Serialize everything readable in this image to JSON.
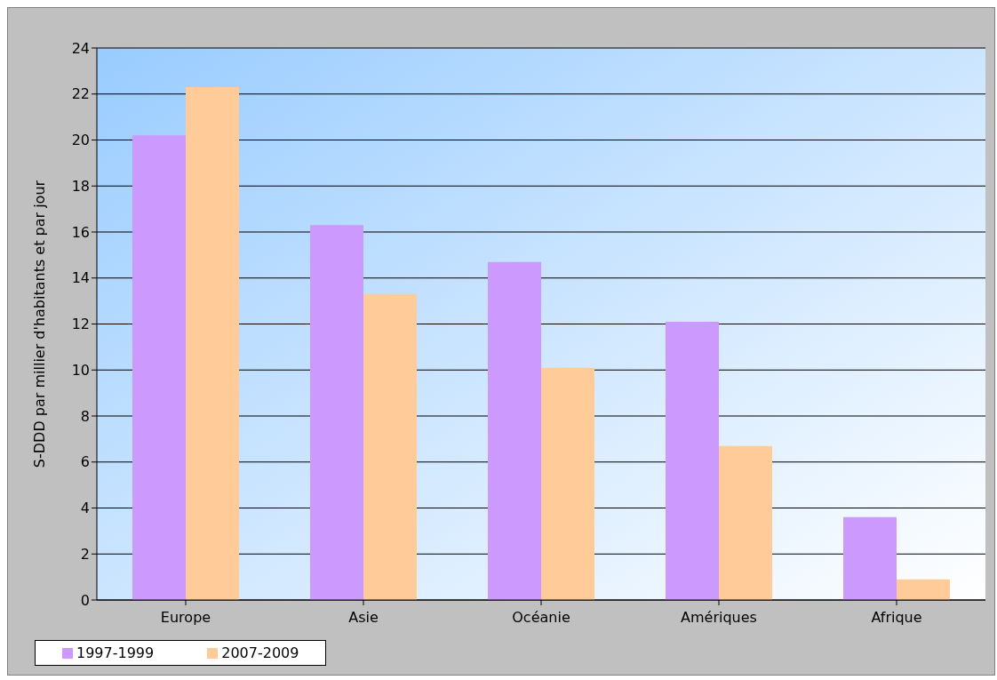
{
  "chart_data": {
    "type": "bar",
    "ylabel": "S-DDD par millier d'habitants et par jour",
    "categories": [
      "Europe",
      "Asie",
      "Océanie",
      "Amériques",
      "Afrique"
    ],
    "series": [
      {
        "name": "1997-1999",
        "color": "#cc99ff",
        "values": [
          20.2,
          16.3,
          14.7,
          12.1,
          3.6
        ]
      },
      {
        "name": "2007-2009",
        "color": "#ffcc99",
        "values": [
          22.3,
          13.3,
          10.1,
          6.7,
          0.9
        ]
      }
    ],
    "ylim": [
      0,
      24
    ],
    "yticks": [
      0,
      2,
      4,
      6,
      8,
      10,
      12,
      14,
      16,
      18,
      20,
      22,
      24
    ],
    "grid": "y",
    "legend": "bottom"
  }
}
